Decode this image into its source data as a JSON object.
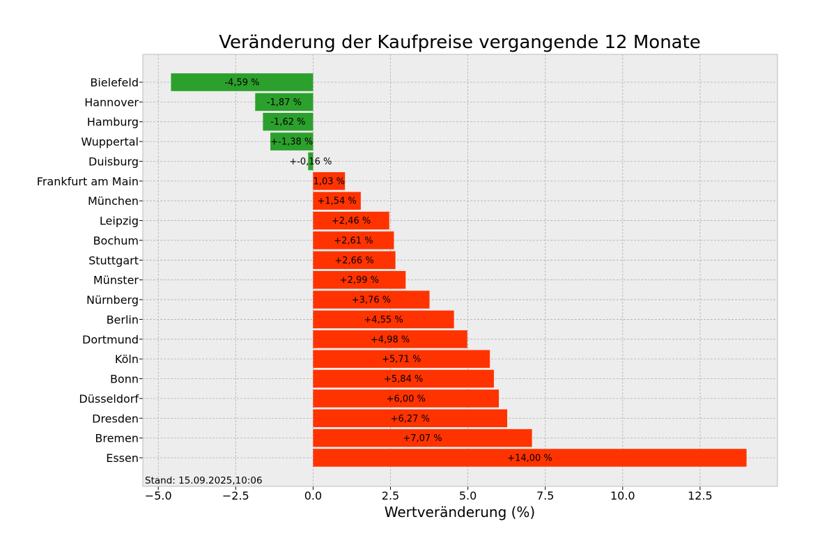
{
  "chart_data": {
    "type": "bar",
    "orientation": "horizontal",
    "title": "Veränderung der Kaufpreise vergangende 12 Monate",
    "xlabel": "Wertveränderung (%)",
    "ylabel": "",
    "xlim": [
      -5.5,
      15.0
    ],
    "xticks": [
      -5.0,
      -2.5,
      0.0,
      2.5,
      5.0,
      7.5,
      10.0,
      12.5
    ],
    "xtick_labels": [
      "−5.0",
      "−2.5",
      "0.0",
      "2.5",
      "5.0",
      "7.5",
      "10.0",
      "12.5"
    ],
    "grid": true,
    "footnote": "Stand: 15.09.2025,10:06",
    "colors": {
      "negative": "#2ca02c",
      "positive": "#ff3300",
      "plot_background": "#ededed",
      "frame": "#bcbcbc"
    },
    "categories": [
      "Bielefeld",
      "Hannover",
      "Hamburg",
      "Wuppertal",
      "Duisburg",
      "Frankfurt am Main",
      "München",
      "Leipzig",
      "Bochum",
      "Stuttgart",
      "Münster",
      "Nürnberg",
      "Berlin",
      "Dortmund",
      "Köln",
      "Bonn",
      "Düsseldorf",
      "Dresden",
      "Bremen",
      "Essen"
    ],
    "values": [
      -4.59,
      -1.87,
      -1.62,
      -1.38,
      -0.16,
      1.03,
      1.54,
      2.46,
      2.61,
      2.66,
      2.99,
      3.76,
      4.55,
      4.98,
      5.71,
      5.84,
      6.0,
      6.27,
      7.07,
      14.0
    ],
    "data_labels": [
      "-4,59 %",
      "-1,87 %",
      "-1,62 %",
      "+-1,38 %",
      "+-0,16 %",
      "1,03 %",
      "+1,54 %",
      "+2,46 %",
      "+2,61 %",
      "+2,66 %",
      "+2,99 %",
      "+3,76 %",
      "+4,55 %",
      "+4,98 %",
      "+5,71 %",
      "+5,84 %",
      "+6,00 %",
      "+6,27 %",
      "+7,07 %",
      "+14,00 %"
    ]
  }
}
